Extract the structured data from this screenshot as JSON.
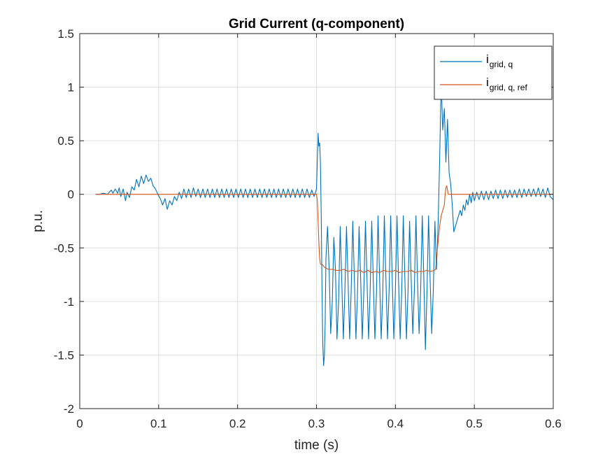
{
  "chart_data": {
    "type": "line",
    "title": "Grid Current (q-component)",
    "xlabel": "time (s)",
    "ylabel": "p.u.",
    "xlim": [
      0,
      0.6
    ],
    "ylim": [
      -2,
      1.5
    ],
    "x_ticks": [
      0,
      0.1,
      0.2,
      0.3,
      0.4,
      0.5,
      0.6
    ],
    "x_tick_labels": [
      "0",
      "0.1",
      "0.2",
      "0.3",
      "0.4",
      "0.5",
      "0.6"
    ],
    "y_ticks": [
      -2,
      -1.5,
      -1,
      -0.5,
      0,
      0.5,
      1,
      1.5
    ],
    "y_tick_labels": [
      "-2",
      "-1.5",
      "-1",
      "-0.5",
      "0",
      "0.5",
      "1",
      "1.5"
    ],
    "grid": true,
    "legend_position": "top-right",
    "series": [
      {
        "name": "i_grid, q",
        "legend_main": "i",
        "legend_sub": "grid, q",
        "color": "#0072BD",
        "points": [
          [
            0.02,
            0.0
          ],
          [
            0.025,
            0.0
          ],
          [
            0.03,
            0.01
          ],
          [
            0.035,
            0.0
          ],
          [
            0.04,
            0.04
          ],
          [
            0.042,
            0.01
          ],
          [
            0.045,
            0.05
          ],
          [
            0.048,
            0.01
          ],
          [
            0.05,
            0.06
          ],
          [
            0.052,
            -0.02
          ],
          [
            0.055,
            0.05
          ],
          [
            0.058,
            -0.06
          ],
          [
            0.06,
            0.02
          ],
          [
            0.063,
            -0.03
          ],
          [
            0.066,
            0.07
          ],
          [
            0.069,
            0.04
          ],
          [
            0.072,
            0.14
          ],
          [
            0.075,
            0.07
          ],
          [
            0.078,
            0.17
          ],
          [
            0.081,
            0.1
          ],
          [
            0.084,
            0.18
          ],
          [
            0.087,
            0.12
          ],
          [
            0.09,
            0.15
          ],
          [
            0.093,
            0.08
          ],
          [
            0.096,
            0.05
          ],
          [
            0.099,
            0.0
          ],
          [
            0.102,
            -0.04
          ],
          [
            0.105,
            -0.1
          ],
          [
            0.108,
            -0.04
          ],
          [
            0.111,
            -0.14
          ],
          [
            0.114,
            -0.06
          ],
          [
            0.117,
            -0.1
          ],
          [
            0.12,
            -0.02
          ],
          [
            0.123,
            -0.06
          ],
          [
            0.126,
            0.02
          ],
          [
            0.129,
            -0.04
          ],
          [
            0.132,
            0.05
          ],
          [
            0.135,
            -0.03
          ],
          [
            0.138,
            0.05
          ],
          [
            0.141,
            -0.03
          ],
          [
            0.144,
            0.06
          ],
          [
            0.147,
            -0.02
          ],
          [
            0.15,
            0.05
          ],
          [
            0.153,
            -0.03
          ],
          [
            0.156,
            0.05
          ],
          [
            0.159,
            -0.03
          ],
          [
            0.162,
            0.05
          ],
          [
            0.165,
            -0.03
          ],
          [
            0.168,
            0.05
          ],
          [
            0.171,
            -0.03
          ],
          [
            0.174,
            0.05
          ],
          [
            0.177,
            -0.03
          ],
          [
            0.18,
            0.05
          ],
          [
            0.183,
            -0.03
          ],
          [
            0.186,
            0.05
          ],
          [
            0.189,
            -0.03
          ],
          [
            0.192,
            0.05
          ],
          [
            0.195,
            -0.03
          ],
          [
            0.198,
            0.05
          ],
          [
            0.201,
            -0.03
          ],
          [
            0.204,
            0.05
          ],
          [
            0.207,
            -0.03
          ],
          [
            0.21,
            0.05
          ],
          [
            0.213,
            -0.03
          ],
          [
            0.216,
            0.05
          ],
          [
            0.219,
            -0.03
          ],
          [
            0.222,
            0.05
          ],
          [
            0.225,
            -0.03
          ],
          [
            0.228,
            0.05
          ],
          [
            0.231,
            -0.03
          ],
          [
            0.234,
            0.05
          ],
          [
            0.237,
            -0.03
          ],
          [
            0.24,
            0.05
          ],
          [
            0.243,
            -0.03
          ],
          [
            0.246,
            0.05
          ],
          [
            0.249,
            -0.03
          ],
          [
            0.252,
            0.05
          ],
          [
            0.255,
            -0.03
          ],
          [
            0.258,
            0.05
          ],
          [
            0.261,
            -0.03
          ],
          [
            0.264,
            0.05
          ],
          [
            0.267,
            -0.03
          ],
          [
            0.27,
            0.05
          ],
          [
            0.273,
            -0.03
          ],
          [
            0.276,
            0.05
          ],
          [
            0.279,
            -0.03
          ],
          [
            0.282,
            0.05
          ],
          [
            0.285,
            -0.03
          ],
          [
            0.288,
            0.05
          ],
          [
            0.291,
            -0.03
          ],
          [
            0.294,
            0.04
          ],
          [
            0.297,
            -0.02
          ],
          [
            0.3,
            0.05
          ],
          [
            0.301,
            0.3
          ],
          [
            0.302,
            0.57
          ],
          [
            0.303,
            0.45
          ],
          [
            0.304,
            0.48
          ],
          [
            0.305,
            0.3
          ],
          [
            0.306,
            -0.2
          ],
          [
            0.307,
            -0.9
          ],
          [
            0.308,
            -1.4
          ],
          [
            0.309,
            -1.6
          ],
          [
            0.31,
            -1.5
          ],
          [
            0.311,
            -1.2
          ],
          [
            0.312,
            -0.6
          ],
          [
            0.314,
            -0.3
          ],
          [
            0.316,
            -0.7
          ],
          [
            0.318,
            -1.3
          ],
          [
            0.32,
            -1.0
          ],
          [
            0.322,
            -0.4
          ],
          [
            0.324,
            -0.7
          ],
          [
            0.326,
            -1.35
          ],
          [
            0.328,
            -1.0
          ],
          [
            0.33,
            -0.3
          ],
          [
            0.332,
            -0.8
          ],
          [
            0.334,
            -1.35
          ],
          [
            0.336,
            -0.9
          ],
          [
            0.338,
            -0.3
          ],
          [
            0.34,
            -0.8
          ],
          [
            0.342,
            -1.35
          ],
          [
            0.344,
            -0.9
          ],
          [
            0.346,
            -0.25
          ],
          [
            0.348,
            -0.8
          ],
          [
            0.35,
            -1.35
          ],
          [
            0.352,
            -0.9
          ],
          [
            0.354,
            -0.3
          ],
          [
            0.356,
            -0.8
          ],
          [
            0.358,
            -1.35
          ],
          [
            0.36,
            -0.9
          ],
          [
            0.362,
            -0.25
          ],
          [
            0.364,
            -0.8
          ],
          [
            0.366,
            -1.35
          ],
          [
            0.368,
            -0.9
          ],
          [
            0.37,
            -0.25
          ],
          [
            0.372,
            -0.8
          ],
          [
            0.374,
            -1.35
          ],
          [
            0.376,
            -0.9
          ],
          [
            0.378,
            -0.2
          ],
          [
            0.38,
            -0.8
          ],
          [
            0.382,
            -1.35
          ],
          [
            0.384,
            -0.9
          ],
          [
            0.386,
            -0.2
          ],
          [
            0.388,
            -0.8
          ],
          [
            0.39,
            -1.35
          ],
          [
            0.392,
            -0.9
          ],
          [
            0.394,
            -0.2
          ],
          [
            0.396,
            -0.8
          ],
          [
            0.398,
            -1.35
          ],
          [
            0.4,
            -0.9
          ],
          [
            0.402,
            -0.2
          ],
          [
            0.404,
            -0.8
          ],
          [
            0.406,
            -1.35
          ],
          [
            0.408,
            -0.9
          ],
          [
            0.41,
            -0.2
          ],
          [
            0.412,
            -0.8
          ],
          [
            0.414,
            -1.35
          ],
          [
            0.416,
            -0.9
          ],
          [
            0.418,
            -0.25
          ],
          [
            0.42,
            -0.8
          ],
          [
            0.422,
            -1.3
          ],
          [
            0.424,
            -0.9
          ],
          [
            0.426,
            -0.2
          ],
          [
            0.428,
            -0.8
          ],
          [
            0.43,
            -1.3
          ],
          [
            0.432,
            -0.9
          ],
          [
            0.434,
            -0.2
          ],
          [
            0.436,
            -0.8
          ],
          [
            0.438,
            -1.45
          ],
          [
            0.44,
            -0.9
          ],
          [
            0.442,
            -0.2
          ],
          [
            0.444,
            -0.8
          ],
          [
            0.446,
            -1.3
          ],
          [
            0.448,
            -0.9
          ],
          [
            0.45,
            -0.25
          ],
          [
            0.452,
            -0.7
          ],
          [
            0.454,
            -0.3
          ],
          [
            0.456,
            0.3
          ],
          [
            0.458,
            1.05
          ],
          [
            0.46,
            0.6
          ],
          [
            0.462,
            0.8
          ],
          [
            0.464,
            0.3
          ],
          [
            0.466,
            0.7
          ],
          [
            0.468,
            0.2
          ],
          [
            0.47,
            0.1
          ],
          [
            0.472,
            -0.1
          ],
          [
            0.474,
            -0.35
          ],
          [
            0.476,
            -0.3
          ],
          [
            0.478,
            -0.25
          ],
          [
            0.48,
            -0.2
          ],
          [
            0.482,
            -0.15
          ],
          [
            0.484,
            -0.2
          ],
          [
            0.486,
            -0.1
          ],
          [
            0.488,
            -0.15
          ],
          [
            0.49,
            -0.05
          ],
          [
            0.492,
            -0.1
          ],
          [
            0.494,
            0.0
          ],
          [
            0.496,
            -0.08
          ],
          [
            0.498,
            0.02
          ],
          [
            0.5,
            -0.06
          ],
          [
            0.503,
            0.02
          ],
          [
            0.506,
            -0.05
          ],
          [
            0.509,
            0.03
          ],
          [
            0.512,
            -0.05
          ],
          [
            0.515,
            0.03
          ],
          [
            0.518,
            -0.05
          ],
          [
            0.521,
            0.03
          ],
          [
            0.524,
            -0.04
          ],
          [
            0.527,
            0.04
          ],
          [
            0.53,
            -0.04
          ],
          [
            0.533,
            0.04
          ],
          [
            0.536,
            -0.04
          ],
          [
            0.539,
            0.04
          ],
          [
            0.542,
            -0.03
          ],
          [
            0.545,
            0.04
          ],
          [
            0.548,
            -0.03
          ],
          [
            0.551,
            0.04
          ],
          [
            0.554,
            -0.03
          ],
          [
            0.557,
            0.05
          ],
          [
            0.56,
            -0.03
          ],
          [
            0.563,
            0.05
          ],
          [
            0.566,
            -0.02
          ],
          [
            0.569,
            0.05
          ],
          [
            0.572,
            -0.02
          ],
          [
            0.575,
            0.05
          ],
          [
            0.578,
            -0.02
          ],
          [
            0.581,
            0.06
          ],
          [
            0.584,
            -0.02
          ],
          [
            0.587,
            0.05
          ],
          [
            0.59,
            -0.03
          ],
          [
            0.593,
            0.06
          ],
          [
            0.596,
            -0.02
          ],
          [
            0.6,
            -0.05
          ]
        ]
      },
      {
        "name": "i_grid, q, ref",
        "legend_main": "i",
        "legend_sub": "grid, q, ref",
        "color": "#D95319",
        "points": [
          [
            0.02,
            0.0
          ],
          [
            0.1,
            0.0
          ],
          [
            0.2,
            0.0
          ],
          [
            0.3,
            0.0
          ],
          [
            0.301,
            -0.05
          ],
          [
            0.302,
            -0.25
          ],
          [
            0.303,
            -0.45
          ],
          [
            0.304,
            -0.6
          ],
          [
            0.305,
            -0.65
          ],
          [
            0.308,
            -0.66
          ],
          [
            0.31,
            -0.68
          ],
          [
            0.315,
            -0.7
          ],
          [
            0.32,
            -0.7
          ],
          [
            0.325,
            -0.71
          ],
          [
            0.33,
            -0.71
          ],
          [
            0.335,
            -0.7
          ],
          [
            0.34,
            -0.72
          ],
          [
            0.345,
            -0.71
          ],
          [
            0.35,
            -0.72
          ],
          [
            0.355,
            -0.71
          ],
          [
            0.36,
            -0.73
          ],
          [
            0.365,
            -0.71
          ],
          [
            0.37,
            -0.73
          ],
          [
            0.375,
            -0.72
          ],
          [
            0.38,
            -0.73
          ],
          [
            0.385,
            -0.71
          ],
          [
            0.39,
            -0.72
          ],
          [
            0.395,
            -0.72
          ],
          [
            0.4,
            -0.71
          ],
          [
            0.405,
            -0.73
          ],
          [
            0.41,
            -0.72
          ],
          [
            0.415,
            -0.72
          ],
          [
            0.42,
            -0.71
          ],
          [
            0.425,
            -0.73
          ],
          [
            0.43,
            -0.72
          ],
          [
            0.435,
            -0.72
          ],
          [
            0.44,
            -0.71
          ],
          [
            0.445,
            -0.72
          ],
          [
            0.449,
            -0.71
          ],
          [
            0.451,
            -0.7
          ],
          [
            0.452,
            -0.6
          ],
          [
            0.454,
            -0.45
          ],
          [
            0.456,
            -0.3
          ],
          [
            0.458,
            -0.2
          ],
          [
            0.46,
            -0.15
          ],
          [
            0.462,
            -0.1
          ],
          [
            0.463,
            0.0
          ],
          [
            0.464,
            0.06
          ],
          [
            0.465,
            0.08
          ],
          [
            0.466,
            0.04
          ],
          [
            0.467,
            0.0
          ],
          [
            0.5,
            0.0
          ],
          [
            0.6,
            0.0
          ]
        ]
      }
    ]
  }
}
